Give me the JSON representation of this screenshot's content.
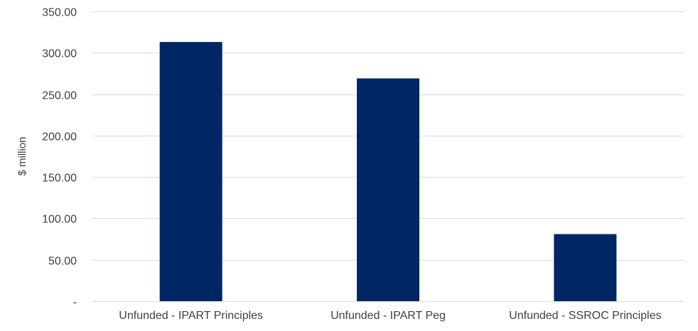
{
  "chart_data": {
    "type": "bar",
    "title": "",
    "xlabel": "",
    "ylabel": "$ million",
    "categories": [
      "Unfunded - IPART Principles",
      "Unfunded - IPART Peg",
      "Unfunded - SSROC Principles"
    ],
    "values": [
      313,
      269,
      81
    ],
    "ylim": [
      0,
      350
    ],
    "y_tick_values": [
      0,
      50,
      100,
      150,
      200,
      250,
      300,
      350
    ],
    "y_tick_labels": [
      "-",
      "50.00",
      "100.00",
      "150.00",
      "200.00",
      "250.00",
      "300.00",
      "350.00"
    ],
    "grid": true,
    "legend": "none",
    "colors": {
      "bar": "#002664",
      "grid": "#d9d9d9",
      "text": "#404040"
    }
  }
}
